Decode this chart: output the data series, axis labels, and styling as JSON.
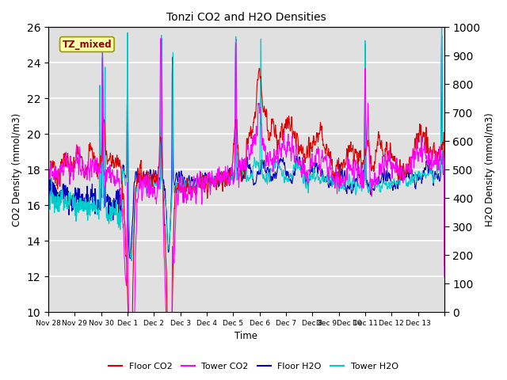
{
  "title": "Tonzi CO2 and H2O Densities",
  "xlabel": "Time",
  "ylabel_left": "CO2 Density (mmol/m3)",
  "ylabel_right": "H2O Density (mmol/m3)",
  "ylim_left": [
    10,
    26
  ],
  "ylim_right": [
    0,
    1000
  ],
  "yticks_left": [
    10,
    12,
    14,
    16,
    18,
    20,
    22,
    24,
    26
  ],
  "yticks_right": [
    0,
    100,
    200,
    300,
    400,
    500,
    600,
    700,
    800,
    900,
    1000
  ],
  "background_color": "#e0e0e0",
  "annotation_text": "TZ_mixed",
  "annotation_color": "#990000",
  "annotation_bg": "#ffffaa",
  "annotation_edgecolor": "#999900",
  "line_colors": {
    "floor_co2": "#dd0000",
    "tower_co2": "#ff00ff",
    "floor_h2o": "#0000bb",
    "tower_h2o": "#00cccc"
  },
  "figsize": [
    6.4,
    4.8
  ],
  "dpi": 100
}
